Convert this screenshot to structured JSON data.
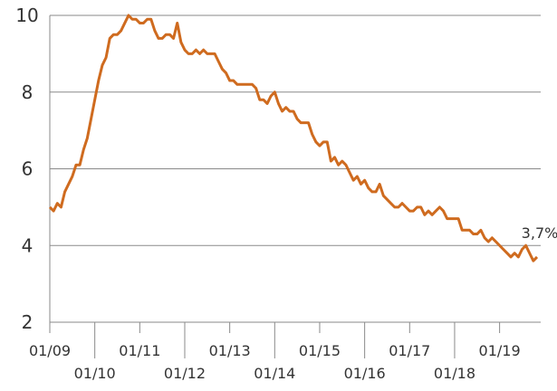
{
  "chart_data": {
    "type": "line",
    "categories": [
      "01/09",
      null,
      null,
      null,
      null,
      null,
      null,
      null,
      null,
      null,
      null,
      null,
      "01/10",
      null,
      null,
      null,
      null,
      null,
      null,
      null,
      null,
      null,
      null,
      null,
      "01/11",
      null,
      null,
      null,
      null,
      null,
      null,
      null,
      null,
      null,
      null,
      null,
      "01/12",
      null,
      null,
      null,
      null,
      null,
      null,
      null,
      null,
      null,
      null,
      null,
      "01/13",
      null,
      null,
      null,
      null,
      null,
      null,
      null,
      null,
      null,
      null,
      null,
      "01/14",
      null,
      null,
      null,
      null,
      null,
      null,
      null,
      null,
      null,
      null,
      null,
      "01/15",
      null,
      null,
      null,
      null,
      null,
      null,
      null,
      null,
      null,
      null,
      null,
      "01/16",
      null,
      null,
      null,
      null,
      null,
      null,
      null,
      null,
      null,
      null,
      null,
      "01/17",
      null,
      null,
      null,
      null,
      null,
      null,
      null,
      null,
      null,
      null,
      null,
      "01/18",
      null,
      null,
      null,
      null,
      null,
      null,
      null,
      null,
      null,
      null,
      null,
      "01/19",
      null,
      null,
      null,
      null,
      null,
      null,
      null,
      null,
      null,
      null
    ],
    "values": [
      5.0,
      4.9,
      5.1,
      5.0,
      5.4,
      5.6,
      5.8,
      6.1,
      6.1,
      6.5,
      6.8,
      7.3,
      7.8,
      8.3,
      8.7,
      8.9,
      9.4,
      9.5,
      9.5,
      9.6,
      9.8,
      10.0,
      9.9,
      9.9,
      9.8,
      9.8,
      9.9,
      9.9,
      9.6,
      9.4,
      9.4,
      9.5,
      9.5,
      9.4,
      9.8,
      9.3,
      9.1,
      9.0,
      9.0,
      9.1,
      9.0,
      9.1,
      9.0,
      9.0,
      9.0,
      8.8,
      8.6,
      8.5,
      8.3,
      8.3,
      8.2,
      8.2,
      8.2,
      8.2,
      8.2,
      8.1,
      7.8,
      7.8,
      7.7,
      7.9,
      8.0,
      7.7,
      7.5,
      7.6,
      7.5,
      7.5,
      7.3,
      7.2,
      7.2,
      7.2,
      6.9,
      6.7,
      6.6,
      6.7,
      6.7,
      6.2,
      6.3,
      6.1,
      6.2,
      6.1,
      5.9,
      5.7,
      5.8,
      5.6,
      5.7,
      5.5,
      5.4,
      5.4,
      5.6,
      5.3,
      5.2,
      5.1,
      5.0,
      5.0,
      5.1,
      5.0,
      4.9,
      4.9,
      5.0,
      5.0,
      4.8,
      4.9,
      4.8,
      4.9,
      5.0,
      4.9,
      4.7,
      4.7,
      4.7,
      4.7,
      4.4,
      4.4,
      4.4,
      4.3,
      4.3,
      4.4,
      4.2,
      4.1,
      4.2,
      4.1,
      4.0,
      3.9,
      3.8,
      3.7,
      3.8,
      3.7,
      3.9,
      4.0,
      3.8,
      3.6,
      3.7
    ],
    "color": "#cf6b1f",
    "annotation": "3,7%",
    "ylim": [
      2,
      10
    ],
    "yticks": [
      2,
      4,
      6,
      8,
      10
    ],
    "grid": true
  }
}
